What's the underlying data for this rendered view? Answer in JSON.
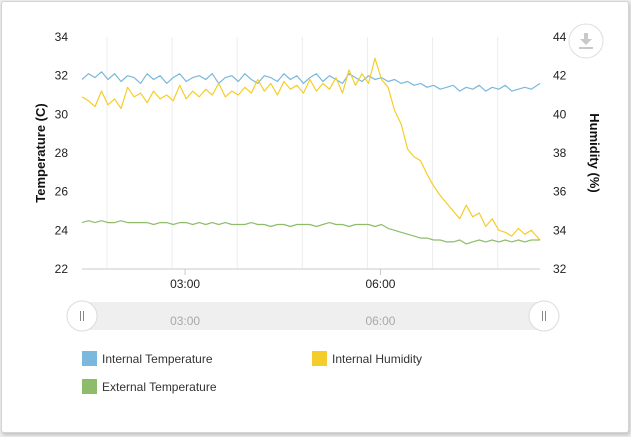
{
  "chart_data": {
    "type": "line",
    "title": "",
    "y_left": {
      "label": "Temperature (C)",
      "ylim": [
        22,
        34
      ],
      "ticks": [
        22,
        24,
        26,
        28,
        30,
        32,
        34
      ]
    },
    "y_right": {
      "label": "Humidity (%)",
      "ylim": [
        32,
        44
      ],
      "ticks": [
        32,
        34,
        36,
        38,
        40,
        42,
        44
      ]
    },
    "x_axis": {
      "type": "time",
      "range": [
        "01:25",
        "08:27"
      ],
      "ticks": [
        "03:00",
        "06:00"
      ]
    },
    "grid": {
      "vertical_lines": [
        "00:48",
        "01:48",
        "02:48",
        "03:48",
        "04:48",
        "05:48",
        "06:48",
        "07:48"
      ]
    },
    "legend_position": "bottom",
    "series": [
      {
        "name": "Internal Temperature",
        "axis": "left",
        "color": "#7ab8dc",
        "x": [
          "01:25",
          "01:31",
          "01:37",
          "01:43",
          "01:49",
          "01:55",
          "02:01",
          "02:07",
          "02:13",
          "02:19",
          "02:25",
          "02:31",
          "02:37",
          "02:43",
          "02:49",
          "02:55",
          "03:01",
          "03:07",
          "03:13",
          "03:19",
          "03:25",
          "03:31",
          "03:37",
          "03:43",
          "03:49",
          "03:55",
          "04:01",
          "04:07",
          "04:13",
          "04:19",
          "04:25",
          "04:31",
          "04:37",
          "04:43",
          "04:49",
          "04:55",
          "05:01",
          "05:07",
          "05:13",
          "05:19",
          "05:25",
          "05:31",
          "05:37",
          "05:43",
          "05:49",
          "05:55",
          "06:01",
          "06:07",
          "06:13",
          "06:19",
          "06:25",
          "06:31",
          "06:37",
          "06:43",
          "06:49",
          "06:55",
          "07:01",
          "07:07",
          "07:13",
          "07:19",
          "07:25",
          "07:31",
          "07:37",
          "07:43",
          "07:49",
          "07:55",
          "08:01",
          "08:07",
          "08:13",
          "08:19",
          "08:27"
        ],
        "values": [
          31.8,
          32.1,
          31.9,
          32.2,
          31.8,
          32.1,
          31.7,
          32.0,
          31.9,
          31.6,
          32.1,
          31.8,
          32.0,
          31.6,
          31.9,
          32.1,
          31.7,
          31.9,
          32.0,
          31.8,
          32.1,
          31.6,
          31.9,
          32.0,
          31.7,
          32.1,
          31.8,
          31.6,
          32.0,
          31.9,
          31.7,
          32.1,
          31.8,
          32.0,
          31.6,
          31.9,
          32.1,
          31.7,
          32.0,
          31.8,
          31.6,
          32.1,
          31.9,
          31.7,
          32.0,
          31.8,
          31.9,
          31.7,
          31.8,
          31.6,
          31.7,
          31.5,
          31.6,
          31.4,
          31.5,
          31.3,
          31.4,
          31.5,
          31.2,
          31.4,
          31.3,
          31.5,
          31.2,
          31.4,
          31.3,
          31.5,
          31.2,
          31.3,
          31.4,
          31.3,
          31.6
        ]
      },
      {
        "name": "Internal Humidity",
        "axis": "right",
        "color": "#f5cd2a",
        "x": [
          "01:25",
          "01:31",
          "01:37",
          "01:43",
          "01:49",
          "01:55",
          "02:01",
          "02:07",
          "02:13",
          "02:19",
          "02:25",
          "02:31",
          "02:37",
          "02:43",
          "02:49",
          "02:55",
          "03:01",
          "03:07",
          "03:13",
          "03:19",
          "03:25",
          "03:31",
          "03:37",
          "03:43",
          "03:49",
          "03:55",
          "04:01",
          "04:07",
          "04:13",
          "04:19",
          "04:25",
          "04:31",
          "04:37",
          "04:43",
          "04:49",
          "04:55",
          "05:01",
          "05:07",
          "05:13",
          "05:19",
          "05:25",
          "05:31",
          "05:37",
          "05:43",
          "05:49",
          "05:55",
          "06:01",
          "06:07",
          "06:13",
          "06:19",
          "06:25",
          "06:31",
          "06:37",
          "06:43",
          "06:49",
          "06:55",
          "07:01",
          "07:07",
          "07:13",
          "07:19",
          "07:25",
          "07:31",
          "07:37",
          "07:43",
          "07:49",
          "07:55",
          "08:01",
          "08:07",
          "08:13",
          "08:19",
          "08:27"
        ],
        "values": [
          40.9,
          40.7,
          40.4,
          41.2,
          40.5,
          40.8,
          40.3,
          41.4,
          40.9,
          41.1,
          40.6,
          41.2,
          40.8,
          41.0,
          40.7,
          41.5,
          40.8,
          41.2,
          40.9,
          41.3,
          41.0,
          41.6,
          40.9,
          41.2,
          41.0,
          41.4,
          41.1,
          41.8,
          41.2,
          41.6,
          41.0,
          41.7,
          41.3,
          41.5,
          41.1,
          41.8,
          41.2,
          41.6,
          41.3,
          41.9,
          41.1,
          42.3,
          41.5,
          42.1,
          41.6,
          42.9,
          41.8,
          41.4,
          40.2,
          39.5,
          38.2,
          37.8,
          37.6,
          36.9,
          36.3,
          35.8,
          35.4,
          35.0,
          34.6,
          35.3,
          34.7,
          34.9,
          34.2,
          34.6,
          34.0,
          33.9,
          33.7,
          34.1,
          33.8,
          34.0,
          33.5
        ]
      },
      {
        "name": "External Temperature",
        "axis": "left",
        "color": "#8fbc6a",
        "x": [
          "01:25",
          "01:31",
          "01:37",
          "01:43",
          "01:49",
          "01:55",
          "02:01",
          "02:07",
          "02:13",
          "02:19",
          "02:25",
          "02:31",
          "02:37",
          "02:43",
          "02:49",
          "02:55",
          "03:01",
          "03:07",
          "03:13",
          "03:19",
          "03:25",
          "03:31",
          "03:37",
          "03:43",
          "03:49",
          "03:55",
          "04:01",
          "04:07",
          "04:13",
          "04:19",
          "04:25",
          "04:31",
          "04:37",
          "04:43",
          "04:49",
          "04:55",
          "05:01",
          "05:07",
          "05:13",
          "05:19",
          "05:25",
          "05:31",
          "05:37",
          "05:43",
          "05:49",
          "05:55",
          "06:01",
          "06:07",
          "06:13",
          "06:19",
          "06:25",
          "06:31",
          "06:37",
          "06:43",
          "06:49",
          "06:55",
          "07:01",
          "07:07",
          "07:13",
          "07:19",
          "07:25",
          "07:31",
          "07:37",
          "07:43",
          "07:49",
          "07:55",
          "08:01",
          "08:07",
          "08:13",
          "08:19",
          "08:27"
        ],
        "values": [
          24.4,
          24.5,
          24.4,
          24.5,
          24.4,
          24.4,
          24.5,
          24.4,
          24.4,
          24.4,
          24.4,
          24.3,
          24.4,
          24.4,
          24.3,
          24.4,
          24.4,
          24.3,
          24.4,
          24.3,
          24.4,
          24.3,
          24.4,
          24.3,
          24.3,
          24.3,
          24.4,
          24.3,
          24.3,
          24.2,
          24.3,
          24.3,
          24.2,
          24.3,
          24.3,
          24.3,
          24.2,
          24.3,
          24.4,
          24.3,
          24.3,
          24.2,
          24.3,
          24.3,
          24.3,
          24.2,
          24.3,
          24.1,
          24.0,
          23.9,
          23.8,
          23.7,
          23.6,
          23.6,
          23.5,
          23.5,
          23.4,
          23.4,
          23.5,
          23.3,
          23.4,
          23.5,
          23.4,
          23.5,
          23.4,
          23.5,
          23.4,
          23.5,
          23.4,
          23.5,
          23.5
        ]
      }
    ]
  },
  "navigator": {
    "tick_labels": [
      "03:00",
      "06:00"
    ],
    "range": [
      "01:25",
      "08:27"
    ]
  },
  "ui": {
    "download_icon": "download-icon",
    "handle_icon": "grip-lines-icon"
  }
}
